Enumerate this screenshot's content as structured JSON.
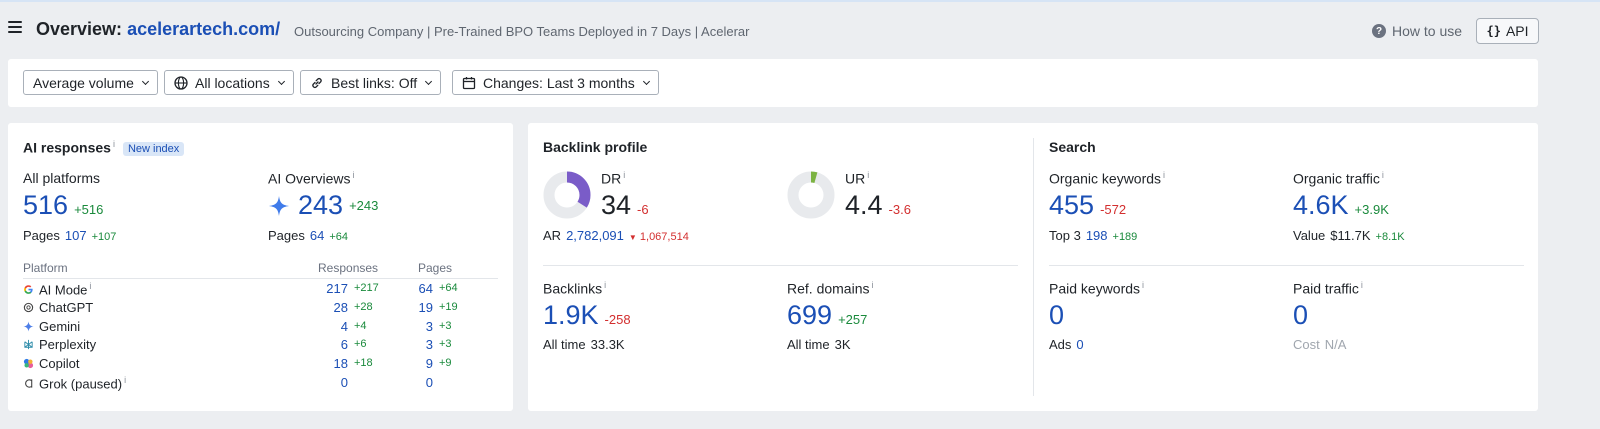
{
  "header": {
    "title_prefix": "Overview:",
    "domain": "acelerartech.com/",
    "subtitle": "Outsourcing Company | Pre-Trained BPO Teams Deployed in 7 Days | Acelerar",
    "how_to_use": "How to use",
    "api": "API"
  },
  "filters": {
    "volume": "Average volume",
    "locations": "All locations",
    "best_links": "Best links: Off",
    "changes": "Changes: Last 3 months"
  },
  "ai": {
    "title": "AI responses",
    "badge": "New index",
    "all_platforms": {
      "label": "All platforms",
      "value": "516",
      "delta": "+516",
      "pages_label": "Pages",
      "pages": "107",
      "pages_delta": "+107"
    },
    "ai_overviews": {
      "label": "AI Overviews",
      "value": "243",
      "delta": "+243",
      "pages_label": "Pages",
      "pages": "64",
      "pages_delta": "+64"
    },
    "table": {
      "headers": {
        "platform": "Platform",
        "responses": "Responses",
        "pages": "Pages"
      },
      "rows": [
        {
          "name": "AI Mode",
          "icon": "google-icon",
          "resp": "217",
          "resp_d": "+217",
          "pages": "64",
          "pages_d": "+64"
        },
        {
          "name": "ChatGPT",
          "icon": "chatgpt-icon",
          "resp": "28",
          "resp_d": "+28",
          "pages": "19",
          "pages_d": "+19"
        },
        {
          "name": "Gemini",
          "icon": "gemini-icon",
          "resp": "4",
          "resp_d": "+4",
          "pages": "3",
          "pages_d": "+3"
        },
        {
          "name": "Perplexity",
          "icon": "perplexity-icon",
          "resp": "6",
          "resp_d": "+6",
          "pages": "3",
          "pages_d": "+3"
        },
        {
          "name": "Copilot",
          "icon": "copilot-icon",
          "resp": "18",
          "resp_d": "+18",
          "pages": "9",
          "pages_d": "+9"
        },
        {
          "name": "Grok (paused)",
          "icon": "grok-icon",
          "resp": "0",
          "resp_d": "",
          "pages": "0",
          "pages_d": ""
        }
      ]
    }
  },
  "backlink": {
    "title": "Backlink profile",
    "dr": {
      "label": "DR",
      "value": "34",
      "delta": "-6",
      "fill": 0.34
    },
    "ur": {
      "label": "UR",
      "value": "4.4",
      "delta": "-3.6",
      "fill": 0.044
    },
    "ar": {
      "label": "AR",
      "value": "2,782,091",
      "delta": "1,067,514"
    },
    "backlinks": {
      "label": "Backlinks",
      "value": "1.9K",
      "delta": "-258",
      "sub_label": "All time",
      "sub_value": "33.3K"
    },
    "ref_domains": {
      "label": "Ref. domains",
      "value": "699",
      "delta": "+257",
      "sub_label": "All time",
      "sub_value": "3K"
    }
  },
  "search": {
    "title": "Search",
    "organic_keywords": {
      "label": "Organic keywords",
      "value": "455",
      "delta": "-572",
      "sub_label": "Top 3",
      "sub_value": "198",
      "sub_delta": "+189"
    },
    "organic_traffic": {
      "label": "Organic traffic",
      "value": "4.6K",
      "delta": "+3.9K",
      "sub_label": "Value",
      "sub_value": "$11.7K",
      "sub_delta": "+8.1K"
    },
    "paid_keywords": {
      "label": "Paid keywords",
      "value": "0",
      "sub_label": "Ads",
      "sub_value": "0"
    },
    "paid_traffic": {
      "label": "Paid traffic",
      "value": "0",
      "sub_label": "Cost",
      "sub_value": "N/A"
    }
  },
  "colors": {
    "accent": "#1b4fb5",
    "positive": "#1a8a3c",
    "negative": "#d32f2f",
    "dr_ring": "#7a5cc8",
    "ur_ring": "#7cb342"
  }
}
